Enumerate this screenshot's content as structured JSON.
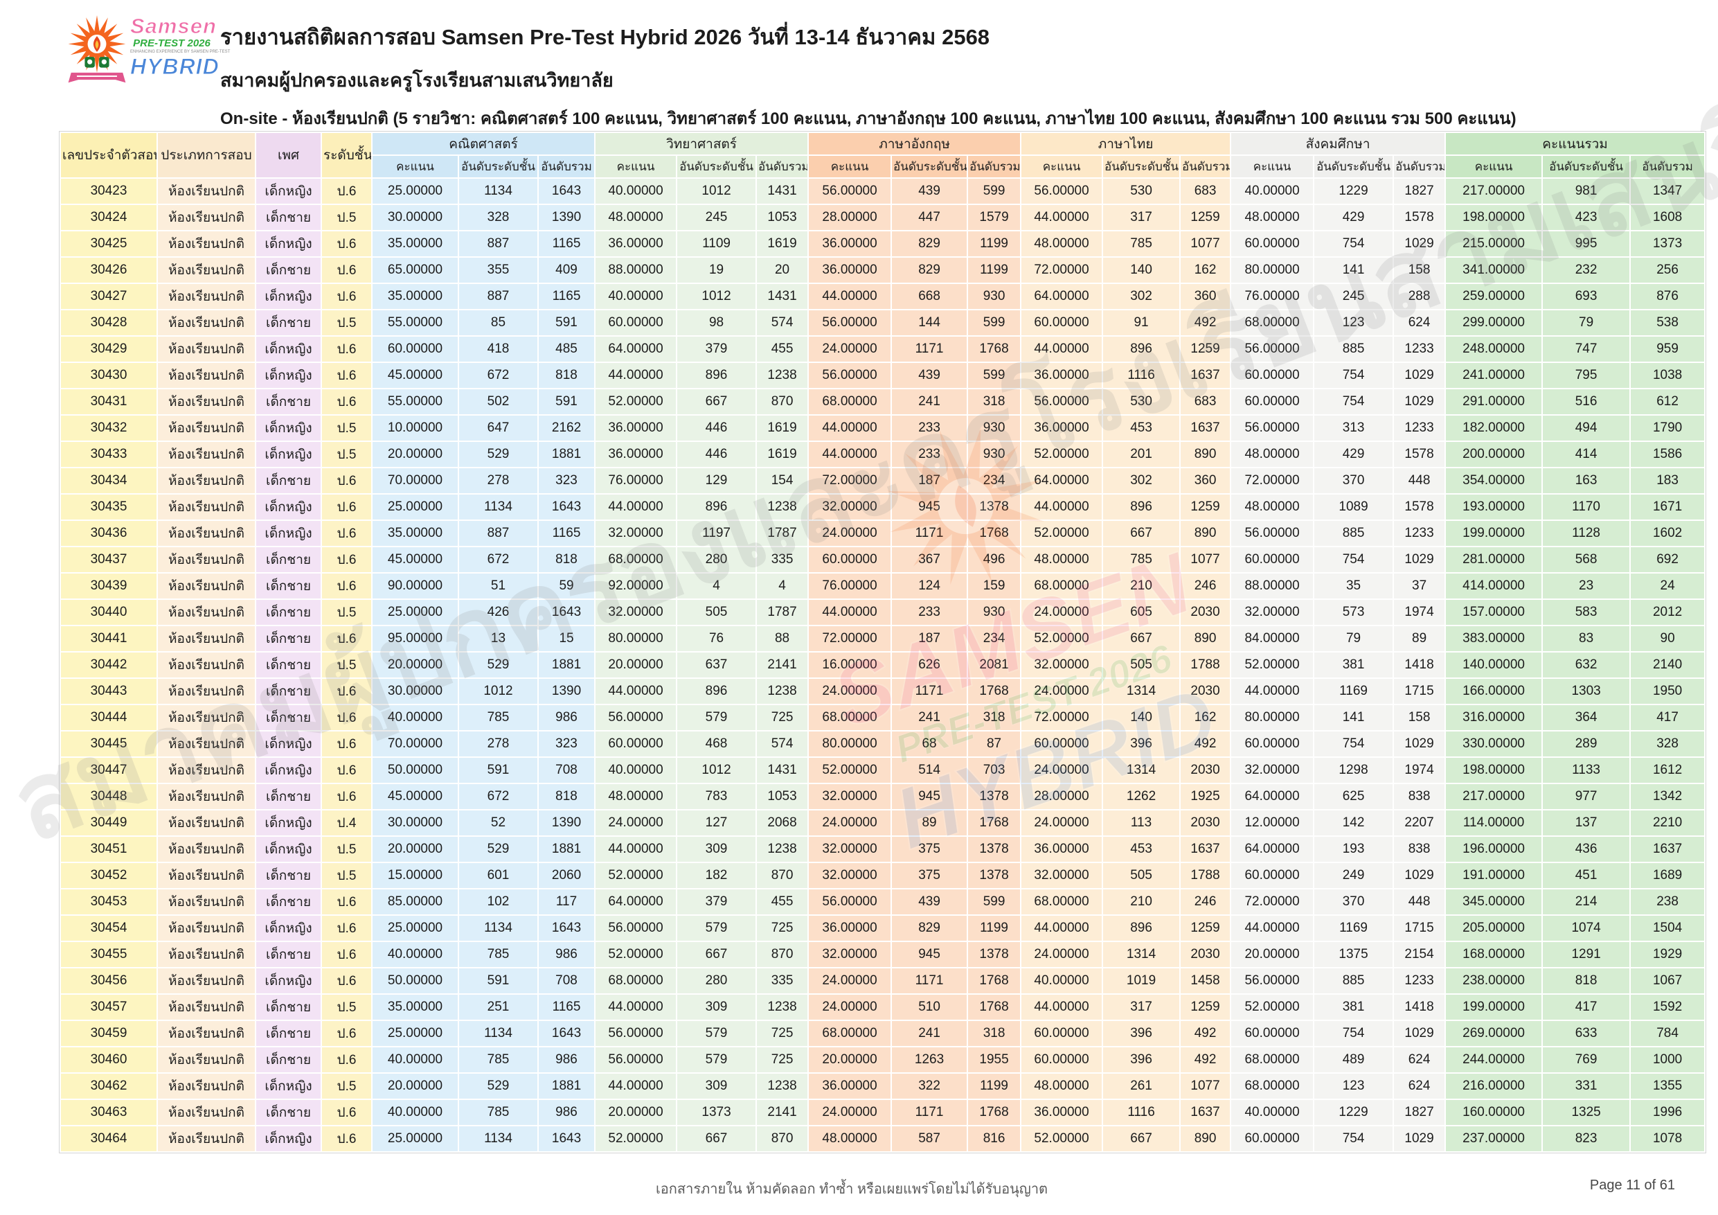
{
  "header": {
    "title": "รายงานสถิติผลการสอบ Samsen Pre-Test Hybrid 2026 วันที่ 13-14 ธันวาคม 2568",
    "subtitle": "สมาคมผู้ปกครองและครูโรงเรียนสามเสนวิทยาลัย",
    "description": "On-site - ห้องเรียนปกติ (5 รายวิชา: คณิตศาสตร์ 100 คะแนน, วิทยาศาสตร์ 100 คะแนน, ภาษาอังกฤษ 100 คะแนน, ภาษาไทย 100 คะแนน, สังคมศึกษา 100 คะแนน รวม 500 คะแนน)",
    "logo": {
      "line1": "Samsen",
      "line2": "PRE-TEST 2026",
      "tagline": "ENHANCING EXPERIENCE BY SAMSEN PRE-TEST",
      "line3": "HYBRID"
    }
  },
  "table": {
    "left_headers": [
      "เลขประจำตัวสอบ",
      "ประเภทการสอบ",
      "เพศ",
      "ระดับชั้น"
    ],
    "left_header_colors": [
      "#fcf0b4",
      "#fae9cf",
      "#eedaf0",
      "#fcefba"
    ],
    "left_colors": [
      "#fdf5c1",
      "#fceedb",
      "#f3e3f5",
      "#fdf3c6"
    ],
    "sub_headers": [
      "คะแนน",
      "อันดับระดับชั้น",
      "อันดับรวม"
    ],
    "groups": [
      {
        "label": "คณิตศาสตร์",
        "header_color": "#cfe7f6",
        "cell_color": "#ddeffa"
      },
      {
        "label": "วิทยาศาสตร์",
        "header_color": "#e2efdc",
        "cell_color": "#e9f3e6"
      },
      {
        "label": "ภาษาอังกฤษ",
        "header_color": "#fbcfae",
        "cell_color": "#fcdfc9"
      },
      {
        "label": "ภาษาไทย",
        "header_color": "#fde8c8",
        "cell_color": "#fdedd6"
      },
      {
        "label": "สังคมศึกษา",
        "header_color": "#efefed",
        "cell_color": "#f4f4f2"
      },
      {
        "label": "คะแนนรวม",
        "header_color": "#c8e7c3",
        "cell_color": "#d6edd2"
      }
    ],
    "rows": [
      [
        "30423",
        "ห้องเรียนปกติ",
        "เด็กหญิง",
        "ป.6",
        "25.00000",
        "1134",
        "1643",
        "40.00000",
        "1012",
        "1431",
        "56.00000",
        "439",
        "599",
        "56.00000",
        "530",
        "683",
        "40.00000",
        "1229",
        "1827",
        "217.00000",
        "981",
        "1347"
      ],
      [
        "30424",
        "ห้องเรียนปกติ",
        "เด็กชาย",
        "ป.5",
        "30.00000",
        "328",
        "1390",
        "48.00000",
        "245",
        "1053",
        "28.00000",
        "447",
        "1579",
        "44.00000",
        "317",
        "1259",
        "48.00000",
        "429",
        "1578",
        "198.00000",
        "423",
        "1608"
      ],
      [
        "30425",
        "ห้องเรียนปกติ",
        "เด็กหญิง",
        "ป.6",
        "35.00000",
        "887",
        "1165",
        "36.00000",
        "1109",
        "1619",
        "36.00000",
        "829",
        "1199",
        "48.00000",
        "785",
        "1077",
        "60.00000",
        "754",
        "1029",
        "215.00000",
        "995",
        "1373"
      ],
      [
        "30426",
        "ห้องเรียนปกติ",
        "เด็กชาย",
        "ป.6",
        "65.00000",
        "355",
        "409",
        "88.00000",
        "19",
        "20",
        "36.00000",
        "829",
        "1199",
        "72.00000",
        "140",
        "162",
        "80.00000",
        "141",
        "158",
        "341.00000",
        "232",
        "256"
      ],
      [
        "30427",
        "ห้องเรียนปกติ",
        "เด็กหญิง",
        "ป.6",
        "35.00000",
        "887",
        "1165",
        "40.00000",
        "1012",
        "1431",
        "44.00000",
        "668",
        "930",
        "64.00000",
        "302",
        "360",
        "76.00000",
        "245",
        "288",
        "259.00000",
        "693",
        "876"
      ],
      [
        "30428",
        "ห้องเรียนปกติ",
        "เด็กชาย",
        "ป.5",
        "55.00000",
        "85",
        "591",
        "60.00000",
        "98",
        "574",
        "56.00000",
        "144",
        "599",
        "60.00000",
        "91",
        "492",
        "68.00000",
        "123",
        "624",
        "299.00000",
        "79",
        "538"
      ],
      [
        "30429",
        "ห้องเรียนปกติ",
        "เด็กหญิง",
        "ป.6",
        "60.00000",
        "418",
        "485",
        "64.00000",
        "379",
        "455",
        "24.00000",
        "1171",
        "1768",
        "44.00000",
        "896",
        "1259",
        "56.00000",
        "885",
        "1233",
        "248.00000",
        "747",
        "959"
      ],
      [
        "30430",
        "ห้องเรียนปกติ",
        "เด็กหญิง",
        "ป.6",
        "45.00000",
        "672",
        "818",
        "44.00000",
        "896",
        "1238",
        "56.00000",
        "439",
        "599",
        "36.00000",
        "1116",
        "1637",
        "60.00000",
        "754",
        "1029",
        "241.00000",
        "795",
        "1038"
      ],
      [
        "30431",
        "ห้องเรียนปกติ",
        "เด็กชาย",
        "ป.6",
        "55.00000",
        "502",
        "591",
        "52.00000",
        "667",
        "870",
        "68.00000",
        "241",
        "318",
        "56.00000",
        "530",
        "683",
        "60.00000",
        "754",
        "1029",
        "291.00000",
        "516",
        "612"
      ],
      [
        "30432",
        "ห้องเรียนปกติ",
        "เด็กหญิง",
        "ป.5",
        "10.00000",
        "647",
        "2162",
        "36.00000",
        "446",
        "1619",
        "44.00000",
        "233",
        "930",
        "36.00000",
        "453",
        "1637",
        "56.00000",
        "313",
        "1233",
        "182.00000",
        "494",
        "1790"
      ],
      [
        "30433",
        "ห้องเรียนปกติ",
        "เด็กหญิง",
        "ป.5",
        "20.00000",
        "529",
        "1881",
        "36.00000",
        "446",
        "1619",
        "44.00000",
        "233",
        "930",
        "52.00000",
        "201",
        "890",
        "48.00000",
        "429",
        "1578",
        "200.00000",
        "414",
        "1586"
      ],
      [
        "30434",
        "ห้องเรียนปกติ",
        "เด็กชาย",
        "ป.6",
        "70.00000",
        "278",
        "323",
        "76.00000",
        "129",
        "154",
        "72.00000",
        "187",
        "234",
        "64.00000",
        "302",
        "360",
        "72.00000",
        "370",
        "448",
        "354.00000",
        "163",
        "183"
      ],
      [
        "30435",
        "ห้องเรียนปกติ",
        "เด็กหญิง",
        "ป.6",
        "25.00000",
        "1134",
        "1643",
        "44.00000",
        "896",
        "1238",
        "32.00000",
        "945",
        "1378",
        "44.00000",
        "896",
        "1259",
        "48.00000",
        "1089",
        "1578",
        "193.00000",
        "1170",
        "1671"
      ],
      [
        "30436",
        "ห้องเรียนปกติ",
        "เด็กหญิง",
        "ป.6",
        "35.00000",
        "887",
        "1165",
        "32.00000",
        "1197",
        "1787",
        "24.00000",
        "1171",
        "1768",
        "52.00000",
        "667",
        "890",
        "56.00000",
        "885",
        "1233",
        "199.00000",
        "1128",
        "1602"
      ],
      [
        "30437",
        "ห้องเรียนปกติ",
        "เด็กชาย",
        "ป.6",
        "45.00000",
        "672",
        "818",
        "68.00000",
        "280",
        "335",
        "60.00000",
        "367",
        "496",
        "48.00000",
        "785",
        "1077",
        "60.00000",
        "754",
        "1029",
        "281.00000",
        "568",
        "692"
      ],
      [
        "30439",
        "ห้องเรียนปกติ",
        "เด็กชาย",
        "ป.6",
        "90.00000",
        "51",
        "59",
        "92.00000",
        "4",
        "4",
        "76.00000",
        "124",
        "159",
        "68.00000",
        "210",
        "246",
        "88.00000",
        "35",
        "37",
        "414.00000",
        "23",
        "24"
      ],
      [
        "30440",
        "ห้องเรียนปกติ",
        "เด็กชาย",
        "ป.5",
        "25.00000",
        "426",
        "1643",
        "32.00000",
        "505",
        "1787",
        "44.00000",
        "233",
        "930",
        "24.00000",
        "605",
        "2030",
        "32.00000",
        "573",
        "1974",
        "157.00000",
        "583",
        "2012"
      ],
      [
        "30441",
        "ห้องเรียนปกติ",
        "เด็กชาย",
        "ป.6",
        "95.00000",
        "13",
        "15",
        "80.00000",
        "76",
        "88",
        "72.00000",
        "187",
        "234",
        "52.00000",
        "667",
        "890",
        "84.00000",
        "79",
        "89",
        "383.00000",
        "83",
        "90"
      ],
      [
        "30442",
        "ห้องเรียนปกติ",
        "เด็กชาย",
        "ป.5",
        "20.00000",
        "529",
        "1881",
        "20.00000",
        "637",
        "2141",
        "16.00000",
        "626",
        "2081",
        "32.00000",
        "505",
        "1788",
        "52.00000",
        "381",
        "1418",
        "140.00000",
        "632",
        "2140"
      ],
      [
        "30443",
        "ห้องเรียนปกติ",
        "เด็กชาย",
        "ป.6",
        "30.00000",
        "1012",
        "1390",
        "44.00000",
        "896",
        "1238",
        "24.00000",
        "1171",
        "1768",
        "24.00000",
        "1314",
        "2030",
        "44.00000",
        "1169",
        "1715",
        "166.00000",
        "1303",
        "1950"
      ],
      [
        "30444",
        "ห้องเรียนปกติ",
        "เด็กชาย",
        "ป.6",
        "40.00000",
        "785",
        "986",
        "56.00000",
        "579",
        "725",
        "68.00000",
        "241",
        "318",
        "72.00000",
        "140",
        "162",
        "80.00000",
        "141",
        "158",
        "316.00000",
        "364",
        "417"
      ],
      [
        "30445",
        "ห้องเรียนปกติ",
        "เด็กหญิง",
        "ป.6",
        "70.00000",
        "278",
        "323",
        "60.00000",
        "468",
        "574",
        "80.00000",
        "68",
        "87",
        "60.00000",
        "396",
        "492",
        "60.00000",
        "754",
        "1029",
        "330.00000",
        "289",
        "328"
      ],
      [
        "30447",
        "ห้องเรียนปกติ",
        "เด็กหญิง",
        "ป.6",
        "50.00000",
        "591",
        "708",
        "40.00000",
        "1012",
        "1431",
        "52.00000",
        "514",
        "703",
        "24.00000",
        "1314",
        "2030",
        "32.00000",
        "1298",
        "1974",
        "198.00000",
        "1133",
        "1612"
      ],
      [
        "30448",
        "ห้องเรียนปกติ",
        "เด็กชาย",
        "ป.6",
        "45.00000",
        "672",
        "818",
        "48.00000",
        "783",
        "1053",
        "32.00000",
        "945",
        "1378",
        "28.00000",
        "1262",
        "1925",
        "64.00000",
        "625",
        "838",
        "217.00000",
        "977",
        "1342"
      ],
      [
        "30449",
        "ห้องเรียนปกติ",
        "เด็กหญิง",
        "ป.4",
        "30.00000",
        "52",
        "1390",
        "24.00000",
        "127",
        "2068",
        "24.00000",
        "89",
        "1768",
        "24.00000",
        "113",
        "2030",
        "12.00000",
        "142",
        "2207",
        "114.00000",
        "137",
        "2210"
      ],
      [
        "30451",
        "ห้องเรียนปกติ",
        "เด็กหญิง",
        "ป.5",
        "20.00000",
        "529",
        "1881",
        "44.00000",
        "309",
        "1238",
        "32.00000",
        "375",
        "1378",
        "36.00000",
        "453",
        "1637",
        "64.00000",
        "193",
        "838",
        "196.00000",
        "436",
        "1637"
      ],
      [
        "30452",
        "ห้องเรียนปกติ",
        "เด็กชาย",
        "ป.5",
        "15.00000",
        "601",
        "2060",
        "52.00000",
        "182",
        "870",
        "32.00000",
        "375",
        "1378",
        "32.00000",
        "505",
        "1788",
        "60.00000",
        "249",
        "1029",
        "191.00000",
        "451",
        "1689"
      ],
      [
        "30453",
        "ห้องเรียนปกติ",
        "เด็กชาย",
        "ป.6",
        "85.00000",
        "102",
        "117",
        "64.00000",
        "379",
        "455",
        "56.00000",
        "439",
        "599",
        "68.00000",
        "210",
        "246",
        "72.00000",
        "370",
        "448",
        "345.00000",
        "214",
        "238"
      ],
      [
        "30454",
        "ห้องเรียนปกติ",
        "เด็กหญิง",
        "ป.6",
        "25.00000",
        "1134",
        "1643",
        "56.00000",
        "579",
        "725",
        "36.00000",
        "829",
        "1199",
        "44.00000",
        "896",
        "1259",
        "44.00000",
        "1169",
        "1715",
        "205.00000",
        "1074",
        "1504"
      ],
      [
        "30455",
        "ห้องเรียนปกติ",
        "เด็กชาย",
        "ป.6",
        "40.00000",
        "785",
        "986",
        "52.00000",
        "667",
        "870",
        "32.00000",
        "945",
        "1378",
        "24.00000",
        "1314",
        "2030",
        "20.00000",
        "1375",
        "2154",
        "168.00000",
        "1291",
        "1929"
      ],
      [
        "30456",
        "ห้องเรียนปกติ",
        "เด็กหญิง",
        "ป.6",
        "50.00000",
        "591",
        "708",
        "68.00000",
        "280",
        "335",
        "24.00000",
        "1171",
        "1768",
        "40.00000",
        "1019",
        "1458",
        "56.00000",
        "885",
        "1233",
        "238.00000",
        "818",
        "1067"
      ],
      [
        "30457",
        "ห้องเรียนปกติ",
        "เด็กชาย",
        "ป.5",
        "35.00000",
        "251",
        "1165",
        "44.00000",
        "309",
        "1238",
        "24.00000",
        "510",
        "1768",
        "44.00000",
        "317",
        "1259",
        "52.00000",
        "381",
        "1418",
        "199.00000",
        "417",
        "1592"
      ],
      [
        "30459",
        "ห้องเรียนปกติ",
        "เด็กชาย",
        "ป.6",
        "25.00000",
        "1134",
        "1643",
        "56.00000",
        "579",
        "725",
        "68.00000",
        "241",
        "318",
        "60.00000",
        "396",
        "492",
        "60.00000",
        "754",
        "1029",
        "269.00000",
        "633",
        "784"
      ],
      [
        "30460",
        "ห้องเรียนปกติ",
        "เด็กชาย",
        "ป.6",
        "40.00000",
        "785",
        "986",
        "56.00000",
        "579",
        "725",
        "20.00000",
        "1263",
        "1955",
        "60.00000",
        "396",
        "492",
        "68.00000",
        "489",
        "624",
        "244.00000",
        "769",
        "1000"
      ],
      [
        "30462",
        "ห้องเรียนปกติ",
        "เด็กหญิง",
        "ป.5",
        "20.00000",
        "529",
        "1881",
        "44.00000",
        "309",
        "1238",
        "36.00000",
        "322",
        "1199",
        "48.00000",
        "261",
        "1077",
        "68.00000",
        "123",
        "624",
        "216.00000",
        "331",
        "1355"
      ],
      [
        "30463",
        "ห้องเรียนปกติ",
        "เด็กชาย",
        "ป.6",
        "40.00000",
        "785",
        "986",
        "20.00000",
        "1373",
        "2141",
        "24.00000",
        "1171",
        "1768",
        "36.00000",
        "1116",
        "1637",
        "40.00000",
        "1229",
        "1827",
        "160.00000",
        "1325",
        "1996"
      ],
      [
        "30464",
        "ห้องเรียนปกติ",
        "เด็กหญิง",
        "ป.6",
        "25.00000",
        "1134",
        "1643",
        "52.00000",
        "667",
        "870",
        "48.00000",
        "587",
        "816",
        "52.00000",
        "667",
        "890",
        "60.00000",
        "754",
        "1029",
        "237.00000",
        "823",
        "1078"
      ]
    ]
  },
  "watermark": {
    "text": "สมาคมผู้ปกครองและครูโรงเรียนสามเสนวิทยาลัย",
    "logo_line1": "SAMSEN",
    "logo_line2": "PRE-TEST 2026",
    "logo_line3": "HYBRID"
  },
  "footer": {
    "note": "เอกสารภายใน ห้ามคัดลอก ทำซ้ำ หรือเผยแพร่โดยไม่ได้รับอนุญาต",
    "page": "Page 11 of 61"
  }
}
